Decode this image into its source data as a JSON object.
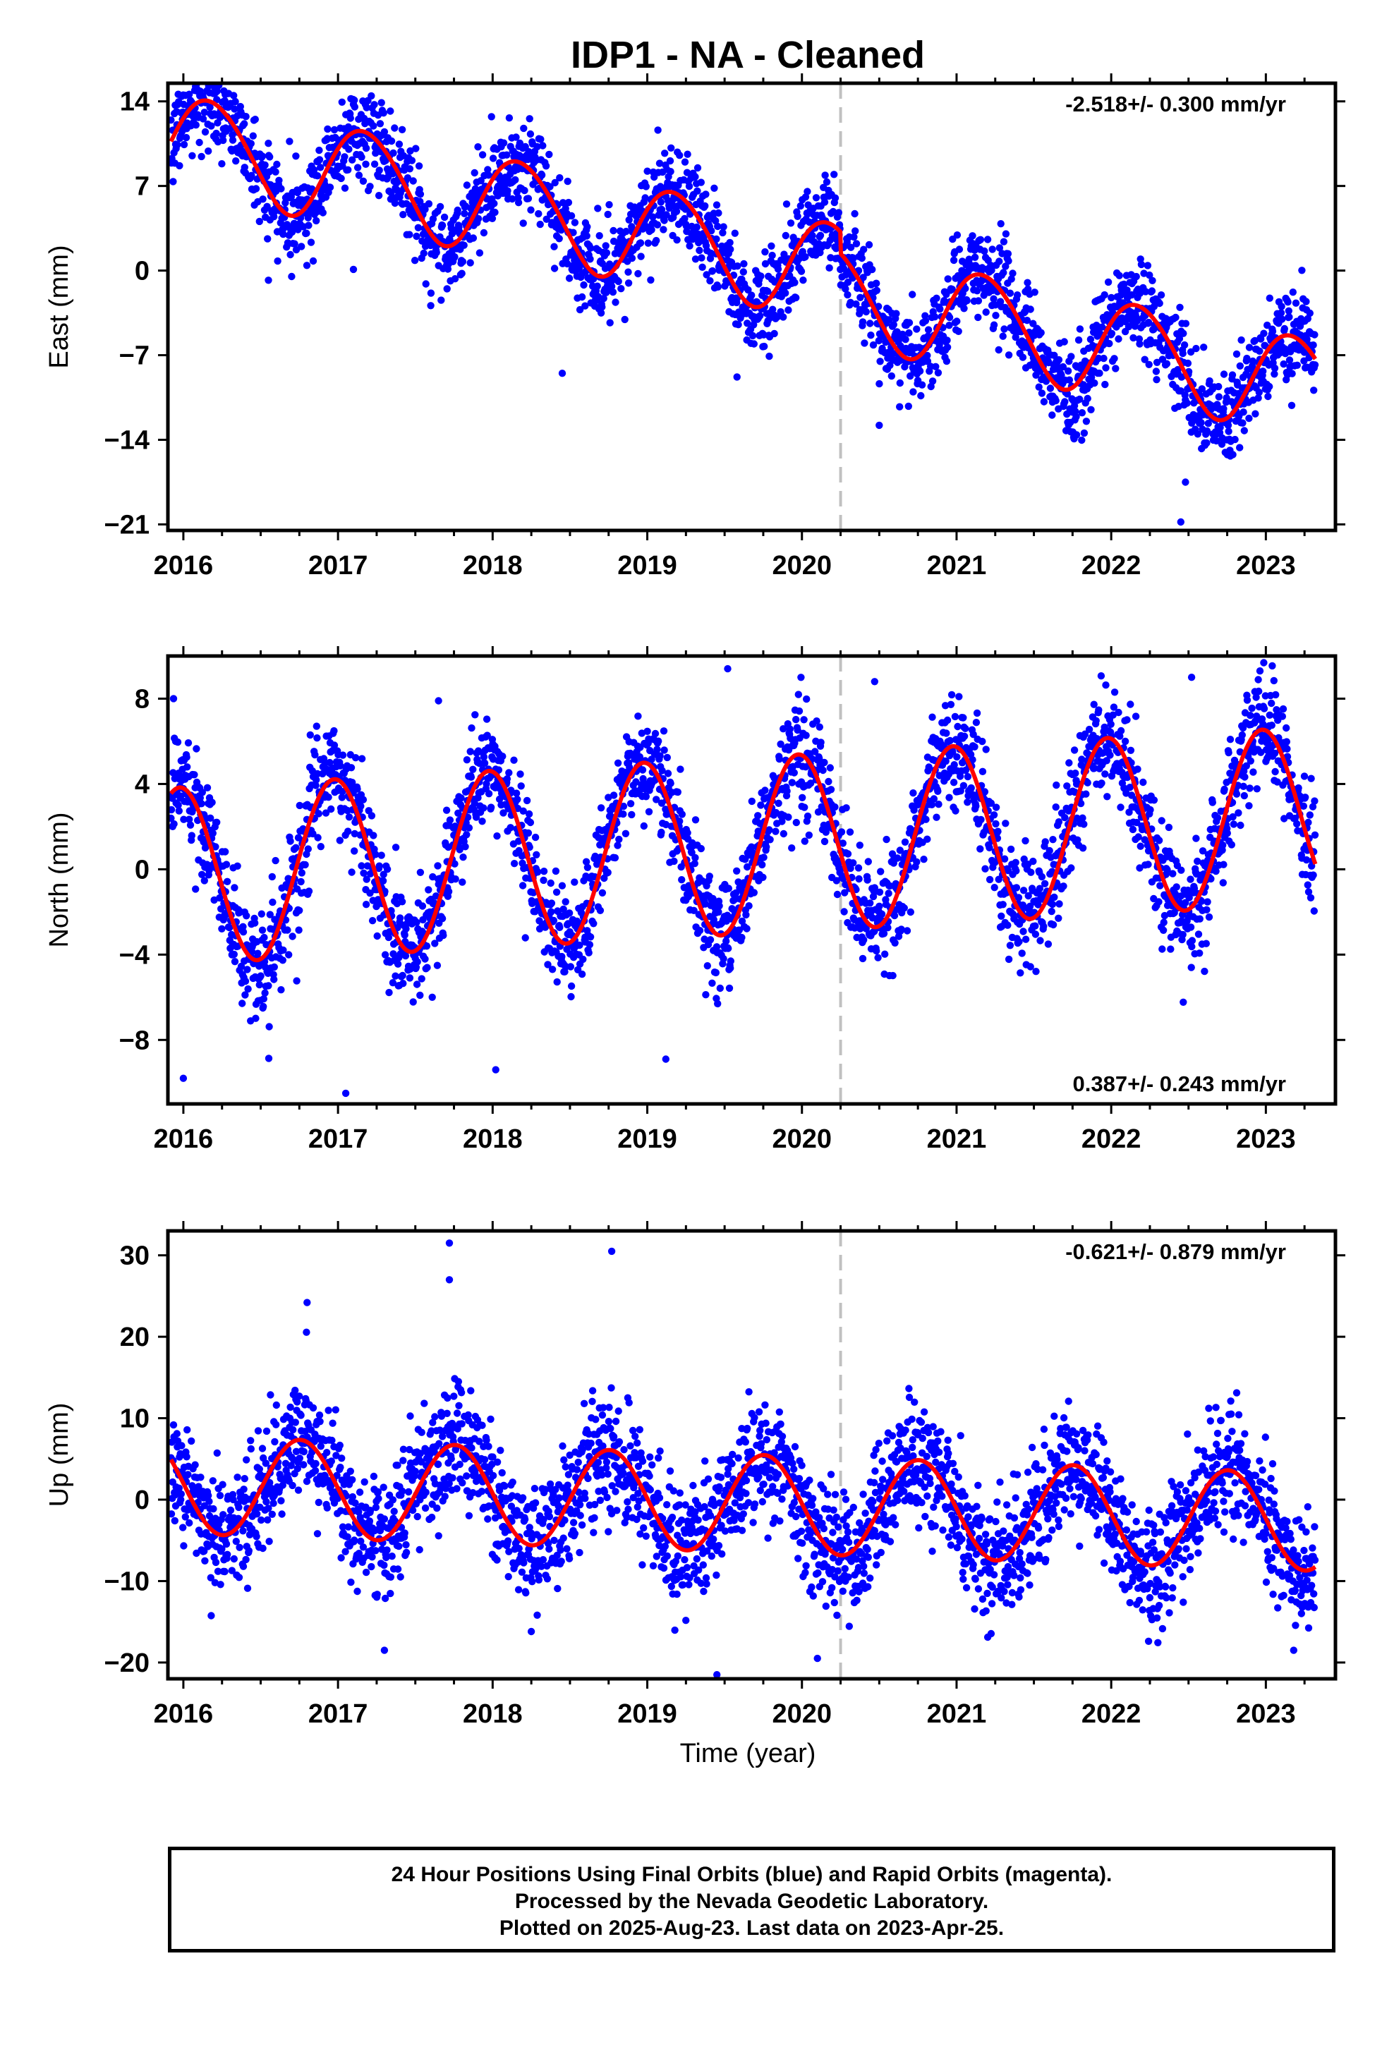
{
  "page_title": "IDP1  - NA - Cleaned",
  "x_axis_label": "Time (year)",
  "x_ticks": [
    "2016",
    "2017",
    "2018",
    "2019",
    "2020",
    "2021",
    "2022",
    "2023"
  ],
  "footer": {
    "line1": "24 Hour Positions Using Final Orbits (blue) and Rapid Orbits (magenta).",
    "line2": "Processed by the Nevada Geodetic Laboratory.",
    "line3": "Plotted on 2025-Aug-23. Last data on 2023-Apr-25."
  },
  "colors": {
    "final_orbit_points": "#0000ff",
    "model_fit": "#ff0000",
    "reference_line": "#c0c0c0",
    "frame": "#000000"
  },
  "chart_data": [
    {
      "type": "scatter",
      "component": "East",
      "ylabel": "East (mm)",
      "xlim": [
        2015.9,
        2023.45
      ],
      "ylim": [
        -21.5,
        15.5
      ],
      "y_ticks": [
        14,
        7,
        0,
        -7,
        -14,
        -21
      ],
      "y_tick_labels": [
        "14",
        "7",
        "0",
        "−7",
        "−14",
        "−21"
      ],
      "rate_label": "-2.518+/- 0.300 mm/yr",
      "rate_placement": "top-right",
      "reference_line_x": 2020.25,
      "model": {
        "offset_2016": 10.55,
        "velocity_mm_yr": -2.518,
        "annual_cos": 1.75,
        "annual_sin": 3.65,
        "semiannual_cos": 0.3,
        "semiannual_sin": 0.0,
        "step_at": 2020.25,
        "step_mm": -1.8
      },
      "scatter_sigma_mm": 1.9,
      "outliers": [
        [
          2022.45,
          -20.8
        ],
        [
          2018.45,
          -8.5
        ],
        [
          2022.48,
          -17.5
        ],
        [
          2016.55,
          -0.8
        ],
        [
          2017.1,
          0.1
        ],
        [
          2017.6,
          -2.9
        ],
        [
          2020.5,
          -12.8
        ],
        [
          2019.58,
          -8.8
        ]
      ],
      "series": [
        {
          "name": "Final Orbits",
          "color": "#0000ff",
          "x_start": 2015.92,
          "x_end": 2023.32,
          "step_days": 2
        },
        {
          "name": "Model fit",
          "color": "#ff0000"
        }
      ]
    },
    {
      "type": "scatter",
      "component": "North",
      "ylabel": "North (mm)",
      "xlim": [
        2015.9,
        2023.45
      ],
      "ylim": [
        -11,
        10
      ],
      "y_ticks": [
        8,
        4,
        0,
        -4,
        -8
      ],
      "y_tick_labels": [
        "8",
        "4",
        "0",
        "−4",
        "−8"
      ],
      "rate_label": "0.387+/- 0.243 mm/yr",
      "rate_placement": "bottom-right",
      "reference_line_x": 2020.25,
      "model": {
        "offset_2016": -0.3,
        "velocity_mm_yr": 0.387,
        "annual_cos": 4.1,
        "annual_sin": -0.6,
        "semiannual_cos": 0.0,
        "semiannual_sin": 0.0,
        "step_at": 2020.25,
        "step_mm": 0.0
      },
      "scatter_sigma_mm": 1.3,
      "outliers": [
        [
          2019.52,
          9.4
        ],
        [
          2017.05,
          -10.5
        ],
        [
          2016.0,
          -9.8
        ],
        [
          2018.02,
          -9.4
        ],
        [
          2019.12,
          -8.9
        ],
        [
          2017.65,
          7.9
        ],
        [
          2020.47,
          8.8
        ],
        [
          2022.52,
          9.0
        ]
      ],
      "series": [
        {
          "name": "Final Orbits",
          "color": "#0000ff",
          "x_start": 2015.92,
          "x_end": 2023.32,
          "step_days": 2
        },
        {
          "name": "Model fit",
          "color": "#ff0000"
        }
      ]
    },
    {
      "type": "scatter",
      "component": "Up",
      "ylabel": "Up (mm)",
      "xlim": [
        2015.9,
        2023.45
      ],
      "ylim": [
        -22,
        33
      ],
      "y_ticks": [
        30,
        20,
        10,
        0,
        -10,
        -20
      ],
      "y_tick_labels": [
        "30",
        "20",
        "10",
        "0",
        "−10",
        "−20"
      ],
      "rate_label": "-0.621+/- 0.879 mm/yr",
      "rate_placement": "top-right",
      "reference_line_x": 2020.25,
      "model": {
        "offset_2016": 1.8,
        "velocity_mm_yr": -0.621,
        "annual_cos": 0.2,
        "annual_sin": -6.0,
        "semiannual_cos": 0.0,
        "semiannual_sin": 0.0,
        "step_at": 2020.25,
        "step_mm": 0.0
      },
      "scatter_sigma_mm": 3.6,
      "outliers": [
        [
          2017.72,
          31.5
        ],
        [
          2017.72,
          27.0
        ],
        [
          2018.77,
          30.5
        ],
        [
          2016.8,
          24.2
        ],
        [
          2019.45,
          -21.5
        ],
        [
          2018.25,
          -16.2
        ],
        [
          2017.3,
          -18.5
        ],
        [
          2020.1,
          -19.5
        ],
        [
          2023.18,
          -18.5
        ]
      ],
      "series": [
        {
          "name": "Final Orbits",
          "color": "#0000ff",
          "x_start": 2015.92,
          "x_end": 2023.32,
          "step_days": 2
        },
        {
          "name": "Model fit",
          "color": "#ff0000"
        }
      ]
    }
  ]
}
